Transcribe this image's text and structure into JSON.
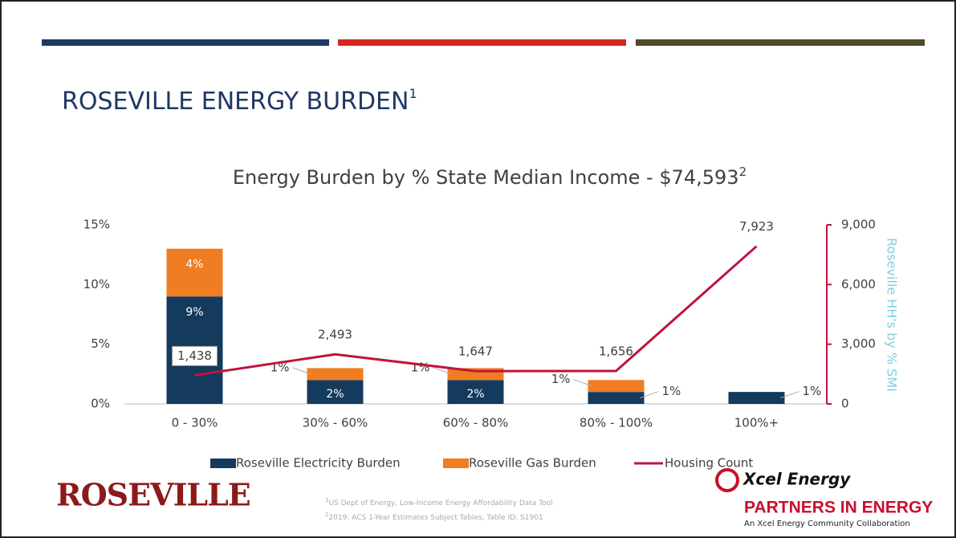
{
  "header": {
    "title": "ROSEVILLE ENERGY BURDEN",
    "title_sup": "1"
  },
  "chart_data": {
    "type": "stacked-bar-line",
    "title": "Energy Burden by % State Median Income - $74,593",
    "title_sup": "2",
    "categories": [
      "0 - 30%",
      "30% - 60%",
      "60% - 80%",
      "80% - 100%",
      "100%+"
    ],
    "series": [
      {
        "name": "Roseville Electricity Burden",
        "color": "#143a5e",
        "values": [
          9,
          2,
          2,
          1,
          1
        ],
        "value_labels": [
          "9%",
          "2%",
          "2%",
          "1%",
          "1%"
        ]
      },
      {
        "name": "Roseville Gas Burden",
        "color": "#f07d22",
        "values": [
          4,
          1,
          1,
          1,
          null
        ],
        "value_labels": [
          "4%",
          "1%",
          "1%",
          "1%",
          null
        ]
      },
      {
        "name": "Housing Count",
        "color": "#c0143c",
        "axis": "y2",
        "values": [
          1438,
          2493,
          1647,
          1656,
          7923
        ],
        "value_labels": [
          "1,438",
          "2,493",
          "1,647",
          "1,656",
          "7,923"
        ]
      }
    ],
    "ylim": [
      0,
      15
    ],
    "yticks": [
      {
        "value": 0,
        "label": "0%"
      },
      {
        "value": 5,
        "label": "5%"
      },
      {
        "value": 10,
        "label": "10%"
      },
      {
        "value": 15,
        "label": "15%"
      }
    ],
    "y2lim": [
      0,
      9000
    ],
    "y2ticks": [
      0,
      {
        "value": 3000,
        "label": "3,000"
      },
      {
        "value": 6000,
        "label": "6,000"
      },
      {
        "value": 9000,
        "label": "9,000"
      }
    ],
    "y2label": "Roseville HH's by % SMI"
  },
  "footnotes": [
    {
      "mark": "1",
      "text": "US Dept of Energy, Low-Income Energy Affordability Data Tool"
    },
    {
      "mark": "2",
      "text": "2019: ACS 1-Year Estimates Subject Tables, Table ID: S1901"
    }
  ],
  "logos": {
    "roseville": "ROSEVILLE",
    "xcel": "Xcel Energy",
    "partners": "PARTNERS IN ENERGY",
    "partners_sub": "An Xcel Energy Community Collaboration"
  }
}
